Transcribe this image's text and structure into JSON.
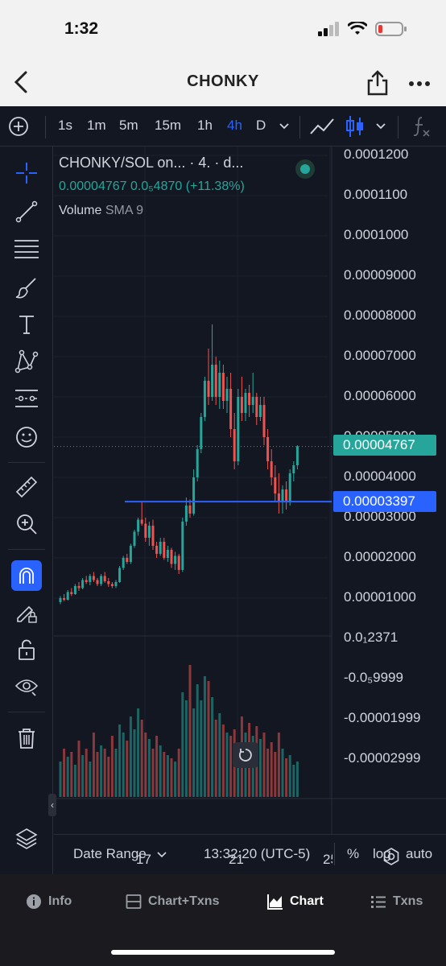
{
  "status": {
    "time": "1:32"
  },
  "nav": {
    "title": "CHONKY"
  },
  "toolbar": {
    "timeframes": [
      "1s",
      "1m",
      "5m",
      "15m",
      "1h",
      "4h",
      "D"
    ],
    "active_timeframe": "4h"
  },
  "legend": {
    "title": "CHONKY/SOL on... · 4. · d...",
    "values": "0.00004767  0.0₅4870 (+11.38%)",
    "volume_label": "Volume",
    "volume_sma": "SMA 9"
  },
  "price_axis": [
    "0.0001200",
    "0.0001100",
    "0.0001000",
    "0.00009000",
    "0.00008000",
    "0.00007000",
    "0.00006000",
    "0.00005000",
    "0.00004000",
    "0.00003000",
    "0.00002000",
    "0.00001000"
  ],
  "current_price": "0.00004767",
  "line_price": "0.00003397",
  "volume_axis": [
    "0.0₁2371",
    "-0.0₅9999",
    "-0.00001999",
    "-0.00002999"
  ],
  "date_axis": [
    "17",
    "21",
    "25"
  ],
  "bottom": {
    "date_range": "Date Range",
    "time": "13:32:20 (UTC-5)",
    "percent": "%",
    "log": "log",
    "auto": "auto"
  },
  "tabs": {
    "info": "Info",
    "chart_txns": "Chart+Txns",
    "chart": "Chart",
    "txns": "Txns"
  },
  "colors": {
    "up": "#26a69a",
    "down": "#ef5350",
    "line": "#2962ff",
    "bg": "#131722"
  },
  "chart_data": {
    "type": "candlestick",
    "y_range": [
      0.0,
      0.00012
    ],
    "candles": [
      [
        9e-06,
        1.05e-05,
        8.5e-06,
        1e-05
      ],
      [
        1e-05,
        1.1e-05,
        9.2e-06,
        9.6e-06
      ],
      [
        9.6e-06,
        1.2e-05,
        9.4e-06,
        1.15e-05
      ],
      [
        1.15e-05,
        1.25e-05,
        1.05e-05,
        1.1e-05
      ],
      [
        1.1e-05,
        1.35e-05,
        1.08e-05,
        1.3e-05
      ],
      [
        1.3e-05,
        1.4e-05,
        1.18e-05,
        1.25e-05
      ],
      [
        1.25e-05,
        1.5e-05,
        1.22e-05,
        1.45e-05
      ],
      [
        1.45e-05,
        1.55e-05,
        1.35e-05,
        1.4e-05
      ],
      [
        1.4e-05,
        1.6e-05,
        1.32e-05,
        1.55e-05
      ],
      [
        1.55e-05,
        1.65e-05,
        1.4e-05,
        1.45e-05
      ],
      [
        1.45e-05,
        1.5e-05,
        1.3e-05,
        1.35e-05
      ],
      [
        1.35e-05,
        1.6e-05,
        1.3e-05,
        1.55e-05
      ],
      [
        1.55e-05,
        1.65e-05,
        1.38e-05,
        1.42e-05
      ],
      [
        1.42e-05,
        1.5e-05,
        1.28e-05,
        1.35e-05
      ],
      [
        1.35e-05,
        1.4e-05,
        1.25e-05,
        1.3e-05
      ],
      [
        1.3e-05,
        1.45e-05,
        1.25e-05,
        1.4e-05
      ],
      [
        1.4e-05,
        1.8e-05,
        1.38e-05,
        1.75e-05
      ],
      [
        1.75e-05,
        2.05e-05,
        1.7e-05,
        2e-05
      ],
      [
        2e-05,
        2.1e-05,
        1.85e-05,
        1.9e-05
      ],
      [
        1.9e-05,
        2.35e-05,
        1.85e-05,
        2.3e-05
      ],
      [
        2.3e-05,
        2.7e-05,
        2.25e-05,
        2.65e-05
      ],
      [
        2.65e-05,
        3e-05,
        2.55e-05,
        2.95e-05
      ],
      [
        2.95e-05,
        3.4e-05,
        2.8e-05,
        2.85e-05
      ],
      [
        2.85e-05,
        3e-05,
        2.4e-05,
        2.5e-05
      ],
      [
        2.5e-05,
        2.9e-05,
        2.3e-05,
        2.8e-05
      ],
      [
        2.8e-05,
        2.95e-05,
        2.2e-05,
        2.3e-05
      ],
      [
        2.3e-05,
        2.4e-05,
        2e-05,
        2.1e-05
      ],
      [
        2.1e-05,
        2.5e-05,
        2.05e-05,
        2.4e-05
      ],
      [
        2.4e-05,
        2.5e-05,
        1.95e-05,
        2e-05
      ],
      [
        2e-05,
        2.3e-05,
        1.9e-05,
        2.2e-05
      ],
      [
        2.2e-05,
        2.25e-05,
        1.75e-05,
        1.85e-05
      ],
      [
        1.85e-05,
        2.15e-05,
        1.7e-05,
        2.05e-05
      ],
      [
        2.05e-05,
        2.1e-05,
        1.6e-05,
        1.7e-05
      ],
      [
        1.7e-05,
        3e-05,
        1.65e-05,
        2.9e-05
      ],
      [
        2.9e-05,
        3.5e-05,
        2.8e-05,
        3.3e-05
      ],
      [
        3.3e-05,
        3.45e-05,
        3e-05,
        3.1e-05
      ],
      [
        3.1e-05,
        4.2e-05,
        3.05e-05,
        4e-05
      ],
      [
        4e-05,
        4.8e-05,
        3.9e-05,
        4.7e-05
      ],
      [
        4.7e-05,
        5.6e-05,
        4.6e-05,
        5.5e-05
      ],
      [
        5.5e-05,
        6.5e-05,
        5.4e-05,
        6.4e-05
      ],
      [
        6.4e-05,
        7.2e-05,
        5.8e-05,
        6e-05
      ],
      [
        6e-05,
        7.8e-05,
        5.9e-05,
        6.8e-05
      ],
      [
        6.8e-05,
        7e-05,
        5.8e-05,
        6e-05
      ],
      [
        6e-05,
        6.9e-05,
        5.7e-05,
        6.6e-05
      ],
      [
        6.6e-05,
        6.8e-05,
        5.7e-05,
        5.9e-05
      ],
      [
        5.9e-05,
        6.5e-05,
        5.6e-05,
        6.2e-05
      ],
      [
        6.2e-05,
        6.6e-05,
        5e-05,
        5.2e-05
      ],
      [
        5.2e-05,
        5.6e-05,
        4.2e-05,
        4.4e-05
      ],
      [
        4.4e-05,
        6.2e-05,
        4.3e-05,
        6e-05
      ],
      [
        6e-05,
        6.5e-05,
        5.4e-05,
        5.6e-05
      ],
      [
        5.6e-05,
        6.2e-05,
        5.4e-05,
        6.1e-05
      ],
      [
        6.1e-05,
        6.3e-05,
        5.5e-05,
        5.8e-05
      ],
      [
        5.8e-05,
        6.6e-05,
        5.6e-05,
        6e-05
      ],
      [
        6e-05,
        6.1e-05,
        5.3e-05,
        5.5e-05
      ],
      [
        5.5e-05,
        6e-05,
        5.4e-05,
        5.8e-05
      ],
      [
        5.8e-05,
        6e-05,
        4.8e-05,
        5e-05
      ],
      [
        5e-05,
        5.2e-05,
        4.2e-05,
        4.4e-05
      ],
      [
        4.4e-05,
        4.7e-05,
        3.8e-05,
        4e-05
      ],
      [
        4e-05,
        4.3e-05,
        3.4e-05,
        3.6e-05
      ],
      [
        3.6e-05,
        4.1e-05,
        3.1e-05,
        3.4e-05
      ],
      [
        3.4e-05,
        3.8e-05,
        3.1e-05,
        3.7e-05
      ],
      [
        3.7e-05,
        3.9e-05,
        3.2e-05,
        3.4e-05
      ],
      [
        3.4e-05,
        4.2e-05,
        3.3e-05,
        4.1e-05
      ],
      [
        4.1e-05,
        4.4e-05,
        3.9e-05,
        4.3e-05
      ],
      [
        4.3e-05,
        4.8e-05,
        4.2e-05,
        4.77e-05
      ]
    ],
    "volumes": [
      0.22,
      0.3,
      0.25,
      0.28,
      0.2,
      0.35,
      0.26,
      0.3,
      0.22,
      0.4,
      0.28,
      0.32,
      0.3,
      0.25,
      0.38,
      0.3,
      0.45,
      0.4,
      0.35,
      0.5,
      0.42,
      0.55,
      0.48,
      0.4,
      0.36,
      0.3,
      0.38,
      0.32,
      0.28,
      0.26,
      0.24,
      0.22,
      0.3,
      0.65,
      0.6,
      0.82,
      0.55,
      0.7,
      0.6,
      0.75,
      0.72,
      0.62,
      0.48,
      0.52,
      0.45,
      0.4,
      0.38,
      0.42,
      0.34,
      0.5,
      0.4,
      0.46,
      0.38,
      0.44,
      0.36,
      0.4,
      0.3,
      0.34,
      0.28,
      0.4,
      0.3,
      0.24,
      0.26,
      0.2,
      0.22
    ],
    "price_axis_labels": [
      "0.0001200",
      "0.0001100",
      "0.0001000",
      "0.00009000",
      "0.00008000",
      "0.00007000",
      "0.00006000",
      "0.00005000",
      "0.00004000",
      "0.00003000",
      "0.00002000",
      "0.00001000"
    ],
    "date_labels": [
      "17",
      "21",
      "25"
    ],
    "horizontal_line": 3.397e-05,
    "last_price": 4.767e-05
  }
}
